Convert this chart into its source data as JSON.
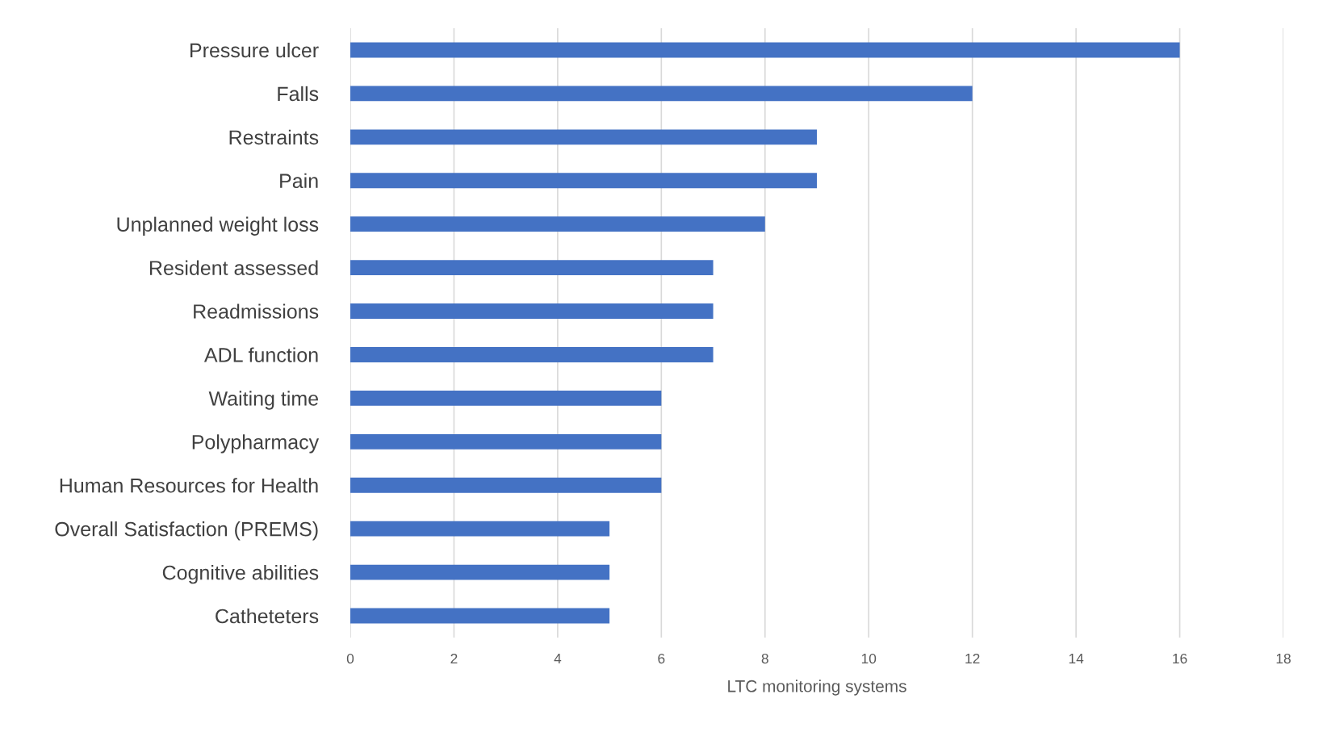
{
  "chart_data": {
    "type": "bar",
    "orientation": "horizontal",
    "xlabel": "LTC monitoring systems",
    "categories": [
      "Pressure ulcer",
      "Falls",
      "Restraints",
      "Pain",
      "Unplanned weight loss",
      "Resident assessed",
      "Readmissions",
      "ADL function",
      "Waiting time",
      "Polypharmacy",
      "Human Resources for Health",
      "Overall Satisfaction (PREMS)",
      "Cognitive abilities",
      "Catheteters"
    ],
    "values": [
      16,
      12,
      9,
      9,
      8,
      7,
      7,
      7,
      6,
      6,
      6,
      5,
      5,
      5
    ],
    "color": "#4472c4",
    "xlim": [
      0,
      18
    ],
    "xticks": [
      0,
      2,
      4,
      6,
      8,
      10,
      12,
      14,
      16,
      18
    ],
    "grid": "x",
    "legend": false
  }
}
